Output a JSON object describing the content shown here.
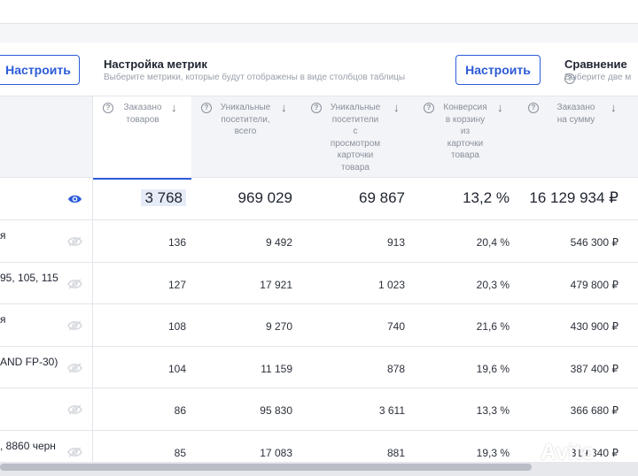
{
  "toolbar": {
    "left_button": "Настроить",
    "metrics_title": "Настройка метрик",
    "metrics_subtitle": "Выберите метрики, которые будут отображены в виде столбцов таблицы",
    "mid_button": "Настроить",
    "compare_title": "Сравнение",
    "compare_subtitle": "Выберите две м"
  },
  "columns": [
    {
      "label": "Заказано товаров",
      "lines": [
        "Заказано",
        "товаров"
      ]
    },
    {
      "label": "Уникальные посетители, всего",
      "lines": [
        "Уникальные",
        "посетители,",
        "всего"
      ]
    },
    {
      "label": "Уникальные посетители с просмотром карточки товара",
      "lines": [
        "Уникальные",
        "посетители",
        "с",
        "просмотром",
        "карточки",
        "товара"
      ]
    },
    {
      "label": "Конверсия в корзину из карточки товара",
      "lines": [
        "Конверсия",
        "в корзину",
        "из",
        "карточки",
        "товара"
      ]
    },
    {
      "label": "Заказано на сумму",
      "lines": [
        "Заказано",
        "на сумму"
      ]
    }
  ],
  "totals": [
    "3 768",
    "969 029",
    "69 867",
    "13,2 %",
    "16 129 934 ₽"
  ],
  "rows": [
    {
      "name": "я",
      "values": [
        "136",
        "9 492",
        "913",
        "20,4 %",
        "546 300 ₽"
      ]
    },
    {
      "name": "95, 105, 115",
      "values": [
        "127",
        "17 921",
        "1 023",
        "20,3 %",
        "479 800 ₽"
      ]
    },
    {
      "name": "я",
      "values": [
        "108",
        "9 270",
        "740",
        "21,6 %",
        "430 900 ₽"
      ]
    },
    {
      "name": "AND FP-30)",
      "values": [
        "104",
        "11 159",
        "878",
        "19,6 %",
        "387 400 ₽"
      ]
    },
    {
      "name": "",
      "values": [
        "86",
        "95 830",
        "3 611",
        "13,3 %",
        "366 680 ₽"
      ]
    },
    {
      "name": ", 8860 черн",
      "values": [
        "85",
        "17 083",
        "881",
        "19,3 %",
        "319 340 ₽"
      ]
    }
  ],
  "icons": {
    "help": "?",
    "arrow": "↓",
    "visible": "eye-icon",
    "hidden": "eye-off-icon"
  },
  "watermark": "Avito",
  "colors": {
    "accent": "#2c5bd8",
    "header_bg": "#f2f4f7",
    "muted": "#8a909b"
  }
}
